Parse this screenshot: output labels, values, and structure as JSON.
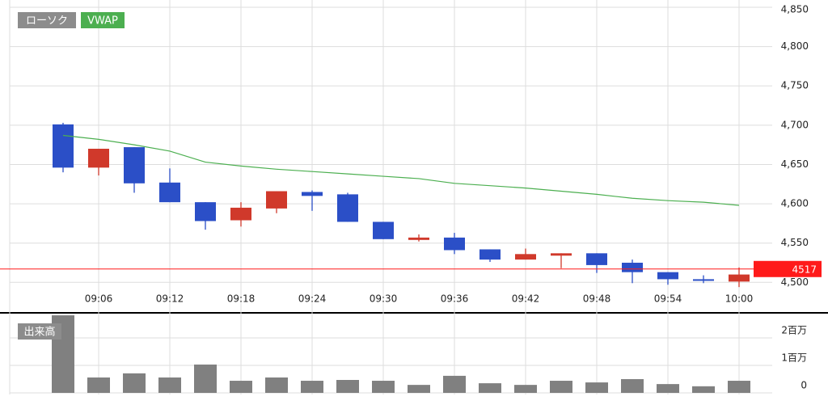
{
  "chart_data": [
    {
      "type": "candlestick",
      "name": "ローソク",
      "categories": [
        null,
        "09:06",
        null,
        "09:12",
        null,
        "09:18",
        null,
        "09:24",
        null,
        "09:30",
        null,
        "09:36",
        null,
        "09:42",
        null,
        "09:48",
        null,
        "09:54",
        null,
        "10:00"
      ],
      "open": [
        4701,
        4646,
        4672,
        4627,
        4602,
        4579,
        4594,
        4615,
        4612,
        4577,
        4554,
        4557,
        4542,
        4529,
        4534,
        4537,
        4525,
        4513,
        4504,
        4501
      ],
      "high": [
        4703,
        4670,
        4672,
        4645,
        4602,
        4602,
        4616,
        4617,
        4614,
        4577,
        4561,
        4563,
        4542,
        4543,
        4537,
        4537,
        4529,
        4513,
        4509,
        4519
      ],
      "low": [
        4640,
        4636,
        4614,
        4602,
        4567,
        4571,
        4588,
        4591,
        4577,
        4555,
        4552,
        4536,
        4526,
        4529,
        4518,
        4512,
        4499,
        4497,
        4499,
        4494
      ],
      "close": [
        4646,
        4670,
        4626,
        4602,
        4578,
        4595,
        4616,
        4610,
        4577,
        4555,
        4557,
        4541,
        4529,
        4536,
        4537,
        4522,
        4513,
        4504,
        4502,
        4510
      ],
      "up_color": "#d0392b",
      "down_color": "#2b4fc7",
      "series": [
        {
          "name": "VWAP",
          "color": "#4caf50",
          "values": [
            4687,
            4682,
            4675,
            4667,
            4653,
            4648,
            4644,
            4641,
            4638,
            4635,
            4632,
            4626,
            4623,
            4620,
            4616,
            4612,
            4607,
            4604,
            4602,
            4598
          ]
        }
      ],
      "current_price": 4517,
      "current_color": "#ff1a1a",
      "ylim": [
        4489,
        4850
      ],
      "yticks": [
        {
          "value": 4500,
          "label": "4,500"
        },
        {
          "value": 4550,
          "label": "4,550"
        },
        {
          "value": 4600,
          "label": "4,600"
        },
        {
          "value": 4650,
          "label": "4,650"
        },
        {
          "value": 4700,
          "label": "4,700"
        },
        {
          "value": 4750,
          "label": "4,750"
        },
        {
          "value": 4800,
          "label": "4,800"
        },
        {
          "value": 4850,
          "label": "4,850"
        }
      ],
      "grid": true
    },
    {
      "type": "bar",
      "title": "出来高",
      "color": "#808080",
      "values": [
        2820000,
        560000,
        710000,
        560000,
        1030000,
        440000,
        560000,
        440000,
        470000,
        440000,
        290000,
        620000,
        350000,
        290000,
        440000,
        380000,
        500000,
        320000,
        240000,
        440000
      ],
      "ylim": [
        0,
        2880000
      ],
      "yticks": [
        0,
        {
          "value": 1000000,
          "label": "1百万"
        },
        {
          "value": 2000000,
          "label": "2百万"
        }
      ],
      "grid": true
    }
  ]
}
